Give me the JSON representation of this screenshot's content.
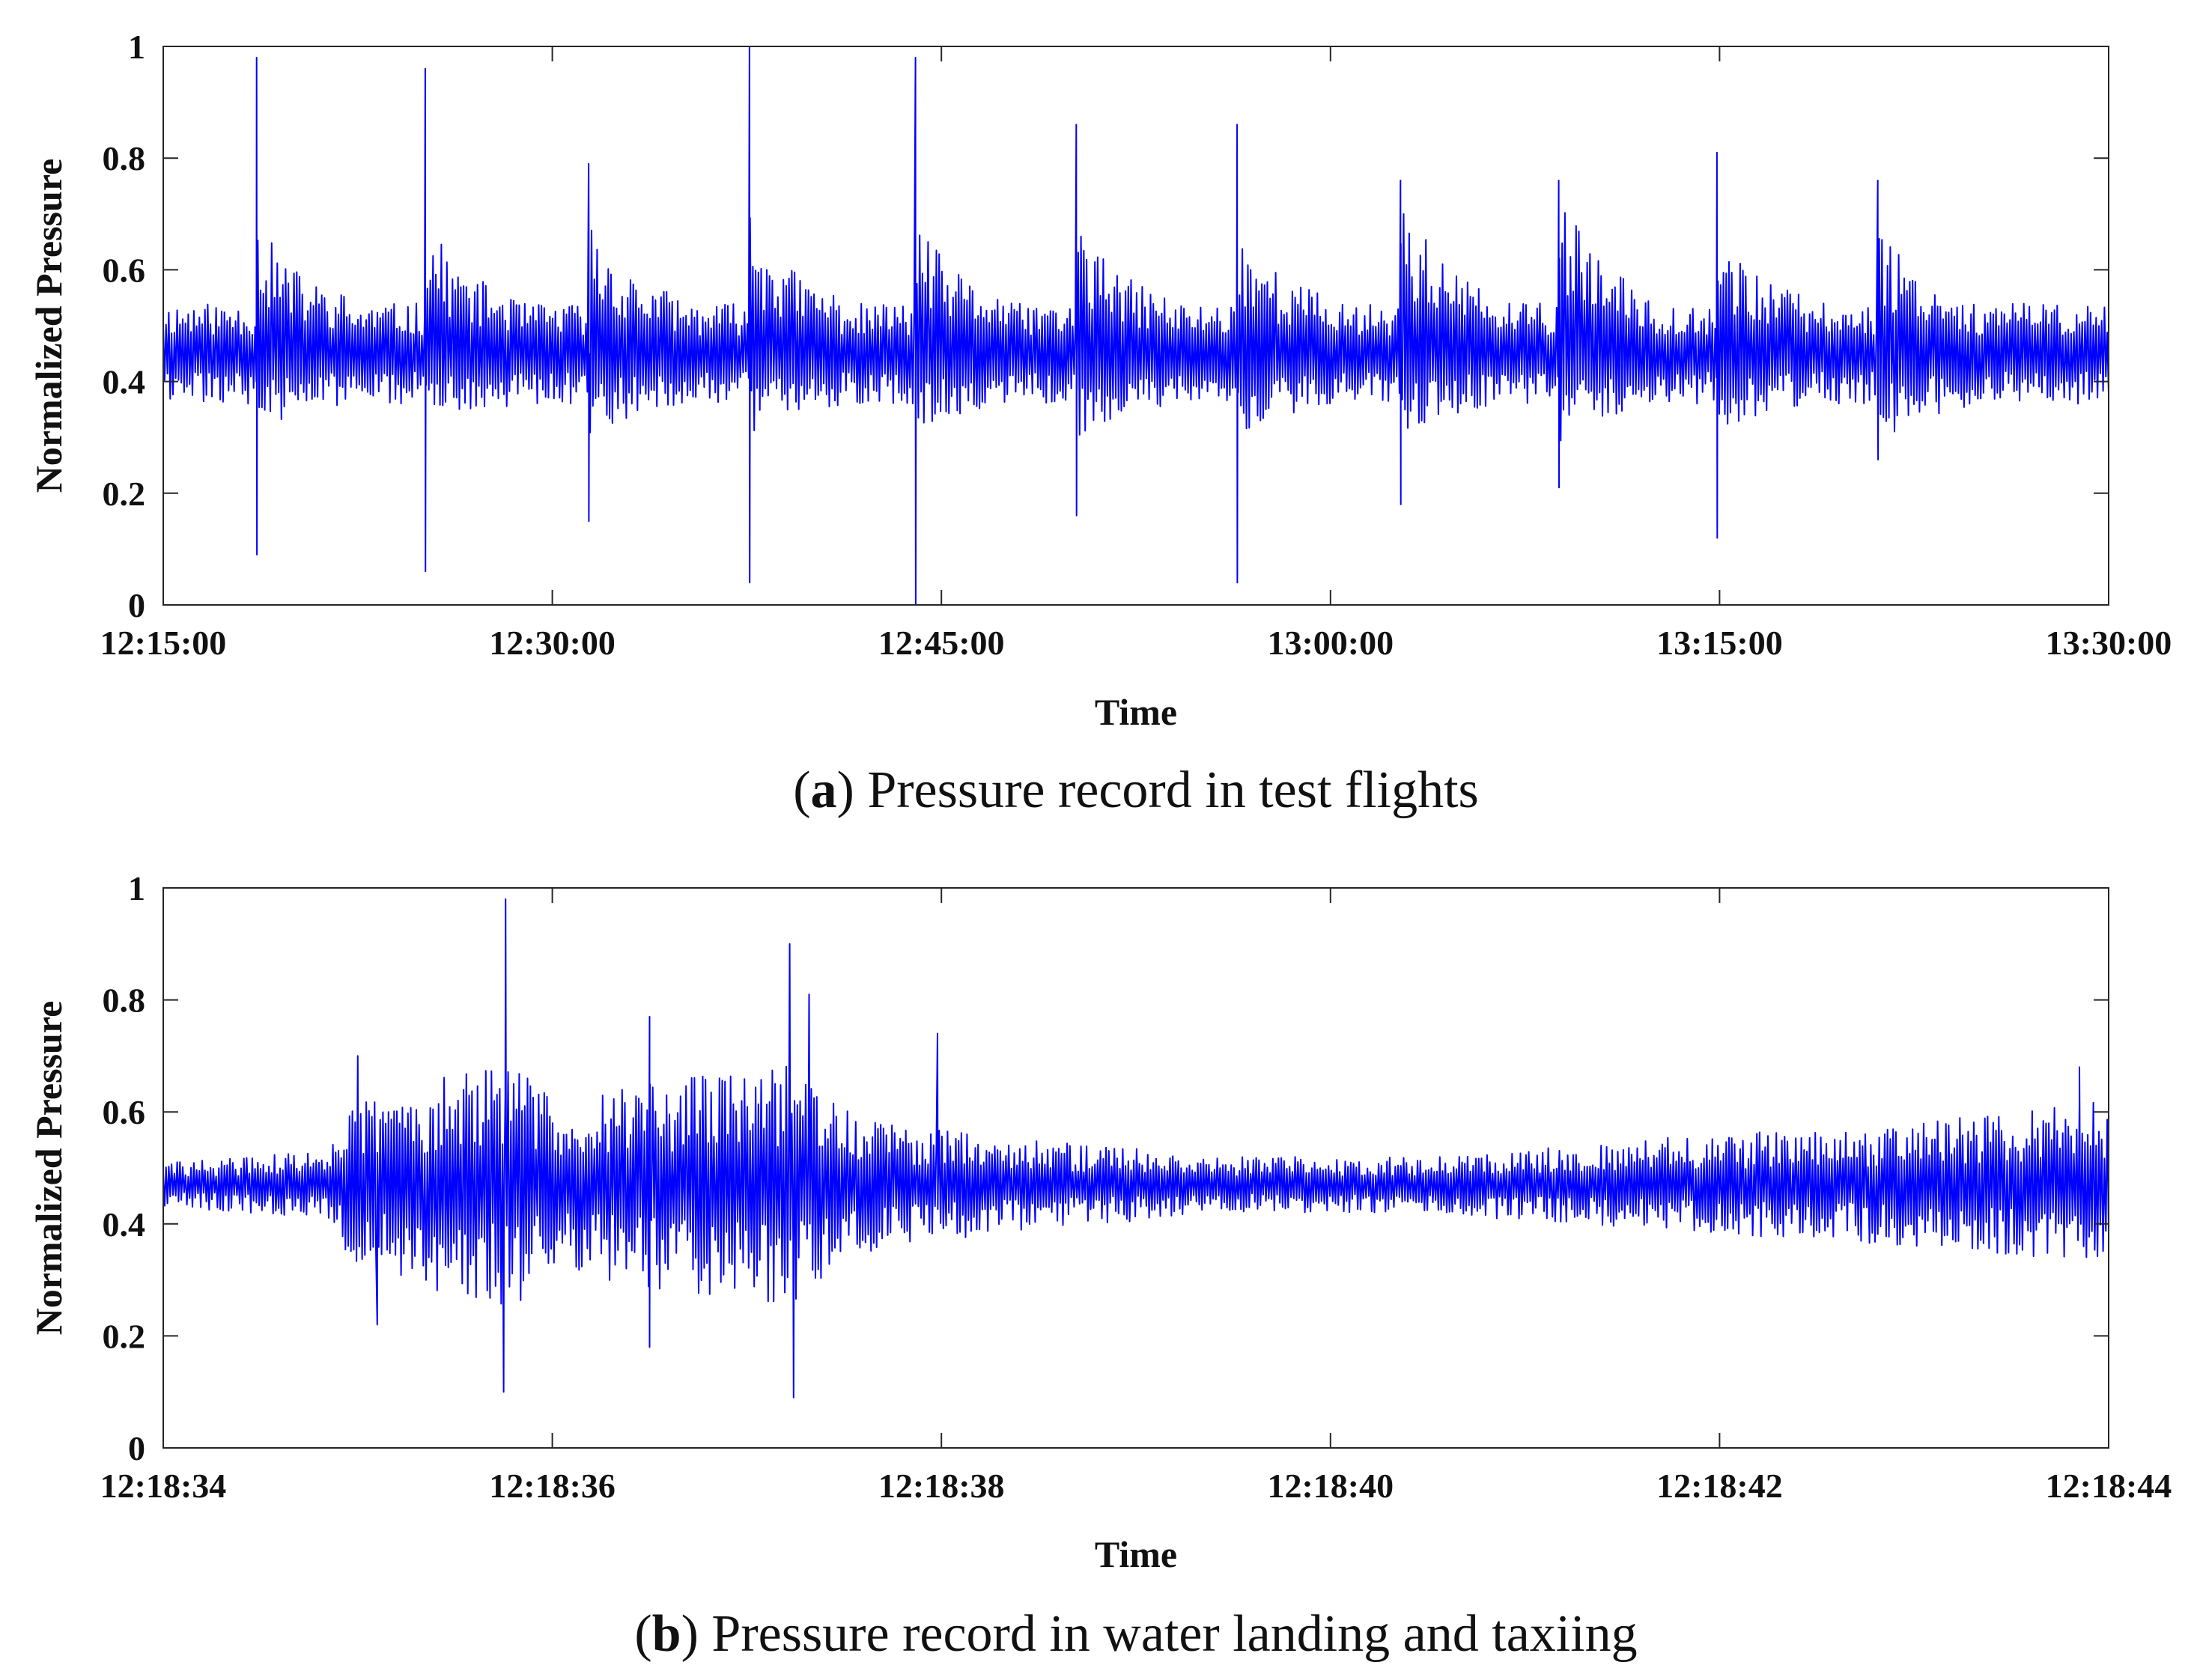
{
  "figure": {
    "panel_a_caption": {
      "letter": "a",
      "text": "Pressure record in test flights"
    },
    "panel_b_caption": {
      "letter": "b",
      "text": "Pressure record in water landing and taxiing"
    }
  },
  "colors": {
    "series": "#0000ff",
    "axes": "#262626",
    "background": "#ffffff"
  },
  "chart_data": [
    {
      "id": "a",
      "type": "line",
      "title": "Pressure record in test flights",
      "xlabel": "Time",
      "ylabel": "Normalized Pressure",
      "x_unit": "minutes since 12:15:00",
      "xlim": [
        0,
        75
      ],
      "ylim": [
        0,
        1
      ],
      "xticks": [
        {
          "value": 0,
          "label": "12:15:00"
        },
        {
          "value": 15,
          "label": "12:30:00"
        },
        {
          "value": 30,
          "label": "12:45:00"
        },
        {
          "value": 45,
          "label": "13:00:00"
        },
        {
          "value": 60,
          "label": "13:15:00"
        },
        {
          "value": 75,
          "label": "13:30:00"
        }
      ],
      "yticks": [
        {
          "value": 0,
          "label": "0"
        },
        {
          "value": 0.2,
          "label": "0.2"
        },
        {
          "value": 0.4,
          "label": "0.4"
        },
        {
          "value": 0.6,
          "label": "0.6"
        },
        {
          "value": 0.8,
          "label": "0.8"
        },
        {
          "value": 1,
          "label": "1"
        }
      ],
      "grid": false,
      "series": [
        {
          "name": "Normalized Pressure",
          "color": "#0000ff",
          "baseline": 0.45,
          "noise_amplitude": 0.09,
          "samples": 1400,
          "seed": 11,
          "events": [
            {
              "t": 3.6,
              "max": 0.98,
              "min": 0.09,
              "burst_high": 0.7,
              "burst_low": 0.27,
              "decay": 3.5
            },
            {
              "t": 10.1,
              "max": 0.96,
              "min": 0.06,
              "burst_high": 0.7,
              "burst_low": 0.3,
              "decay": 3.5
            },
            {
              "t": 16.4,
              "max": 0.79,
              "min": 0.15,
              "burst_high": 0.7,
              "burst_low": 0.25,
              "decay": 3.5
            },
            {
              "t": 22.6,
              "max": 1.0,
              "min": 0.04,
              "burst_high": 0.72,
              "burst_low": 0.27,
              "decay": 3.5
            },
            {
              "t": 29.0,
              "max": 0.98,
              "min": 0.0,
              "burst_high": 0.7,
              "burst_low": 0.27,
              "decay": 3.5
            },
            {
              "t": 35.2,
              "max": 0.86,
              "min": 0.16,
              "burst_high": 0.7,
              "burst_low": 0.23,
              "decay": 3.5
            },
            {
              "t": 41.4,
              "max": 0.86,
              "min": 0.04,
              "burst_high": 0.7,
              "burst_low": 0.24,
              "decay": 3.5
            },
            {
              "t": 47.7,
              "max": 0.76,
              "min": 0.18,
              "burst_high": 0.76,
              "burst_low": 0.25,
              "decay": 3.5
            },
            {
              "t": 53.8,
              "max": 0.76,
              "min": 0.21,
              "burst_high": 0.76,
              "burst_low": 0.23,
              "decay": 3.5
            },
            {
              "t": 59.9,
              "max": 0.81,
              "min": 0.12,
              "burst_high": 0.68,
              "burst_low": 0.26,
              "decay": 3.5
            },
            {
              "t": 66.1,
              "max": 0.76,
              "min": 0.26,
              "burst_high": 0.7,
              "burst_low": 0.23,
              "decay": 3.5
            }
          ]
        }
      ]
    },
    {
      "id": "b",
      "type": "line",
      "title": "Pressure record in water landing and taxiing",
      "xlabel": "Time",
      "ylabel": "Normalized Pressure",
      "x_unit": "seconds since 12:18:34",
      "xlim": [
        0,
        10
      ],
      "ylim": [
        0,
        1
      ],
      "xticks": [
        {
          "value": 0,
          "label": "12:18:34"
        },
        {
          "value": 2,
          "label": "12:18:36"
        },
        {
          "value": 4,
          "label": "12:18:38"
        },
        {
          "value": 6,
          "label": "12:18:40"
        },
        {
          "value": 8,
          "label": "12:18:42"
        },
        {
          "value": 10,
          "label": "12:18:44"
        }
      ],
      "yticks": [
        {
          "value": 0,
          "label": "0"
        },
        {
          "value": 0.2,
          "label": "0.2"
        },
        {
          "value": 0.4,
          "label": "0.4"
        },
        {
          "value": 0.6,
          "label": "0.6"
        },
        {
          "value": 0.8,
          "label": "0.8"
        },
        {
          "value": 1,
          "label": "1"
        }
      ],
      "grid": false,
      "series": [
        {
          "name": "Normalized Pressure",
          "color": "#0000ff",
          "baseline": 0.47,
          "samples": 1400,
          "seed": 29,
          "envelope": [
            {
              "t": 0.0,
              "amp": 0.04
            },
            {
              "t": 0.8,
              "amp": 0.06
            },
            {
              "t": 1.0,
              "amp": 0.15
            },
            {
              "t": 1.5,
              "amp": 0.2
            },
            {
              "t": 1.8,
              "amp": 0.22
            },
            {
              "t": 2.0,
              "amp": 0.16
            },
            {
              "t": 2.6,
              "amp": 0.19
            },
            {
              "t": 3.2,
              "amp": 0.22
            },
            {
              "t": 3.6,
              "amp": 0.12
            },
            {
              "t": 4.5,
              "amp": 0.08
            },
            {
              "t": 5.5,
              "amp": 0.05
            },
            {
              "t": 6.5,
              "amp": 0.05
            },
            {
              "t": 7.5,
              "amp": 0.08
            },
            {
              "t": 9.0,
              "amp": 0.11
            },
            {
              "t": 10.0,
              "amp": 0.15
            }
          ],
          "spikes": [
            {
              "t": 1.0,
              "value": 0.7
            },
            {
              "t": 1.1,
              "value": 0.22
            },
            {
              "t": 1.76,
              "value": 0.98
            },
            {
              "t": 1.75,
              "value": 0.1
            },
            {
              "t": 2.5,
              "value": 0.77
            },
            {
              "t": 2.5,
              "value": 0.18
            },
            {
              "t": 3.22,
              "value": 0.9
            },
            {
              "t": 3.24,
              "value": 0.09
            },
            {
              "t": 3.32,
              "value": 0.81
            },
            {
              "t": 3.98,
              "value": 0.74
            },
            {
              "t": 9.85,
              "value": 0.68
            }
          ]
        }
      ]
    }
  ]
}
